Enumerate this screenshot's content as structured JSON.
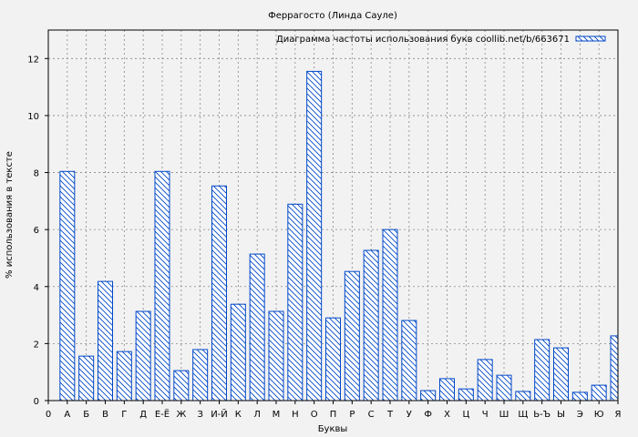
{
  "chart_data": {
    "type": "bar",
    "title": "Феррагосто (Линда Сауле)",
    "xlabel": "Буквы",
    "ylabel": "% использования в тексте",
    "x_tick_labels": [
      "0",
      "А",
      "Б",
      "В",
      "Г",
      "Д",
      "Е-Ё",
      "Ж",
      "З",
      "И-Й",
      "К",
      "Л",
      "М",
      "Н",
      "О",
      "П",
      "Р",
      "С",
      "Т",
      "У",
      "Ф",
      "Х",
      "Ц",
      "Ч",
      "Ш",
      "Щ",
      "Ь-Ъ",
      "Ы",
      "Э",
      "Ю",
      "Я"
    ],
    "categories": [
      "А",
      "Б",
      "В",
      "Г",
      "Д",
      "Е-Ё",
      "Ж",
      "З",
      "И-Й",
      "К",
      "Л",
      "М",
      "Н",
      "О",
      "П",
      "Р",
      "С",
      "Т",
      "У",
      "Ф",
      "Х",
      "Ц",
      "Ч",
      "Ш",
      "Щ",
      "Ь-Ъ",
      "Ы",
      "Э",
      "Ю",
      "Я"
    ],
    "series": [
      {
        "name": "Диаграмма частоты использования букв coollib.net/b/663671",
        "values": [
          8.04,
          1.56,
          4.18,
          1.72,
          3.13,
          8.04,
          1.05,
          1.79,
          7.53,
          3.38,
          5.14,
          3.13,
          6.89,
          11.55,
          2.9,
          4.53,
          5.27,
          6.0,
          2.81,
          0.35,
          0.77,
          0.41,
          1.44,
          0.89,
          0.32,
          2.14,
          1.85,
          0.29,
          0.54,
          2.27
        ],
        "color": "#0047c8"
      }
    ],
    "ylim": [
      0,
      13
    ],
    "y_ticks": [
      "0",
      "2",
      "4",
      "6",
      "8",
      "10",
      "12"
    ],
    "grid": true,
    "legend": "top-right"
  }
}
